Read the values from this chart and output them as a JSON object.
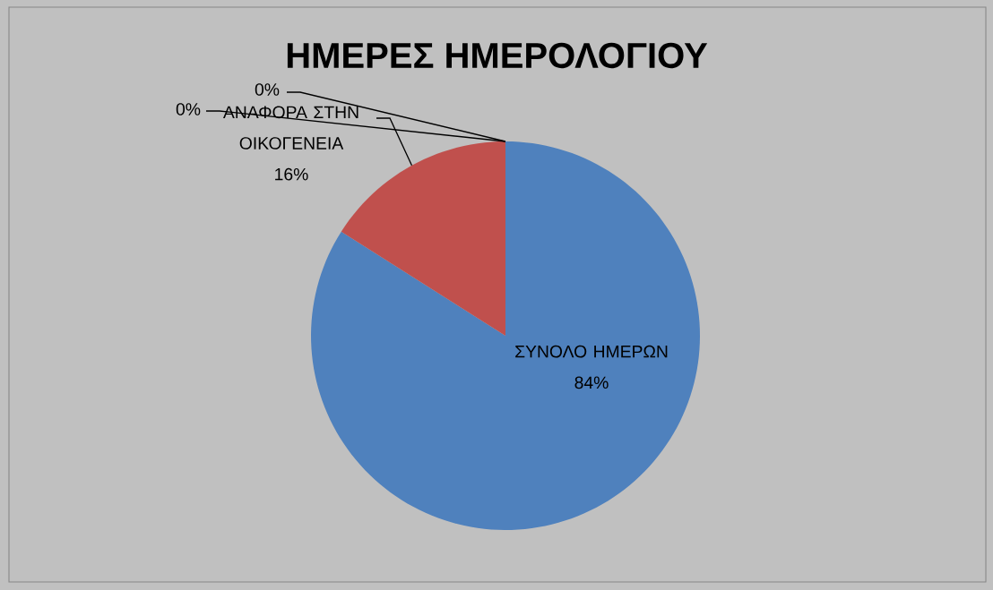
{
  "chart_data": {
    "type": "pie",
    "title": "ΗΜΕΡΕΣ ΗΜΕΡΟΛΟΓΙΟΥ",
    "categories": [
      "ΣΥΝΟΛΟ ΗΜΕΡΩΝ",
      "ΑΝΑΦΟΡΑ ΣΤΗΝ ΟΙΚΟΓΕΝΕΙΑ",
      null,
      null
    ],
    "values": [
      84,
      16,
      0,
      0
    ],
    "colors": [
      "#4f81bd",
      "#c0504d",
      "#9bbb59",
      "#8064a2"
    ],
    "value_labels": [
      "84%",
      "16%",
      "0%",
      "0%"
    ]
  }
}
